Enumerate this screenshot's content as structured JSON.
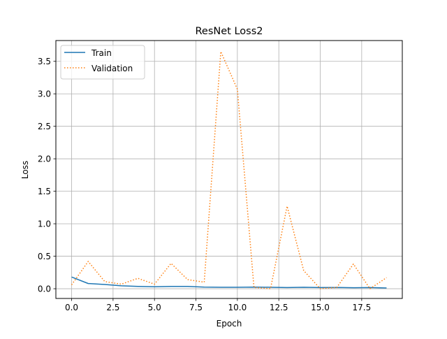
{
  "chart_data": {
    "type": "line",
    "title": "ResNet Loss2",
    "xlabel": "Epoch",
    "ylabel": "Loss",
    "xlim": [
      -0.95,
      19.95
    ],
    "ylim": [
      -0.15,
      3.82
    ],
    "grid": true,
    "legend_position": "upper-left",
    "x_ticks": [
      0.0,
      2.5,
      5.0,
      7.5,
      10.0,
      12.5,
      15.0,
      17.5
    ],
    "x_tick_labels": [
      "0.0",
      "2.5",
      "5.0",
      "7.5",
      "10.0",
      "12.5",
      "15.0",
      "17.5"
    ],
    "y_ticks": [
      0.0,
      0.5,
      1.0,
      1.5,
      2.0,
      2.5,
      3.0,
      3.5
    ],
    "y_tick_labels": [
      "0.0",
      "0.5",
      "1.0",
      "1.5",
      "2.0",
      "2.5",
      "3.0",
      "3.5"
    ],
    "x": [
      0,
      1,
      2,
      3,
      4,
      5,
      6,
      7,
      8,
      9,
      10,
      11,
      12,
      13,
      14,
      15,
      16,
      17,
      18,
      19
    ],
    "series": [
      {
        "name": "Train",
        "color": "#1f77b4",
        "style": "solid",
        "values": [
          0.18,
          0.08,
          0.065,
          0.045,
          0.035,
          0.03,
          0.035,
          0.035,
          0.025,
          0.022,
          0.022,
          0.025,
          0.022,
          0.018,
          0.022,
          0.018,
          0.02,
          0.015,
          0.018,
          0.012
        ]
      },
      {
        "name": "Validation",
        "color": "#ff7f0e",
        "style": "dotted",
        "values": [
          0.06,
          0.42,
          0.11,
          0.07,
          0.16,
          0.07,
          0.39,
          0.14,
          0.1,
          3.65,
          3.07,
          0.02,
          0.0,
          1.27,
          0.28,
          0.0,
          0.02,
          0.38,
          0.0,
          0.17
        ]
      }
    ]
  }
}
